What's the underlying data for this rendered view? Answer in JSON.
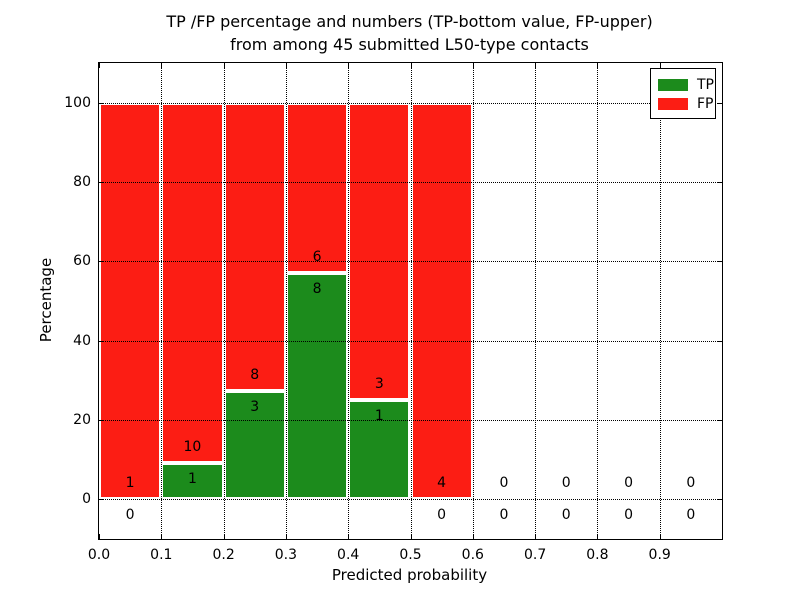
{
  "title": {
    "line1": "TP /FP percentage and numbers (TP-bottom value, FP-upper)",
    "line2": "from among 45 submitted L50-type contacts"
  },
  "axes": {
    "xlabel": "Predicted probability",
    "ylabel": "Percentage",
    "xticks": [
      "0.0",
      "0.1",
      "0.2",
      "0.3",
      "0.4",
      "0.5",
      "0.6",
      "0.7",
      "0.8",
      "0.9"
    ],
    "yticks": [
      "0",
      "20",
      "40",
      "60",
      "80",
      "100"
    ],
    "xlim": [
      0.0,
      1.0
    ],
    "ylim": [
      -10,
      110
    ],
    "grid": "dotted"
  },
  "legend": {
    "position": "upper right",
    "items": [
      {
        "label": "TP",
        "color": "#1c8b1c"
      },
      {
        "label": "FP",
        "color": "#fc1d14"
      }
    ]
  },
  "chart_data": {
    "type": "bar",
    "stacked": true,
    "normalized": "each non-empty bin stacks to 100%",
    "title": "TP /FP percentage and numbers (TP-bottom value, FP-upper) from among 45 submitted L50-type contacts",
    "xlabel": "Predicted probability",
    "ylabel": "Percentage",
    "xlim": [
      0.0,
      1.0
    ],
    "ylim": [
      -10,
      110
    ],
    "grid": true,
    "legend_position": "upper right",
    "total_contacts": 45,
    "bin_edges": [
      0.0,
      0.1,
      0.2,
      0.3,
      0.4,
      0.5,
      0.6,
      0.7,
      0.8,
      0.9,
      1.0
    ],
    "series": [
      {
        "name": "TP",
        "color": "#1c8b1c",
        "counts": [
          0,
          1,
          3,
          8,
          1,
          0,
          0,
          0,
          0,
          0
        ]
      },
      {
        "name": "FP",
        "color": "#fc1d14",
        "counts": [
          1,
          10,
          8,
          6,
          3,
          4,
          0,
          0,
          0,
          0
        ]
      }
    ],
    "tp_percent_by_bin": [
      0,
      9.09,
      27.27,
      57.14,
      25.0,
      0,
      null,
      null,
      null,
      null
    ]
  }
}
